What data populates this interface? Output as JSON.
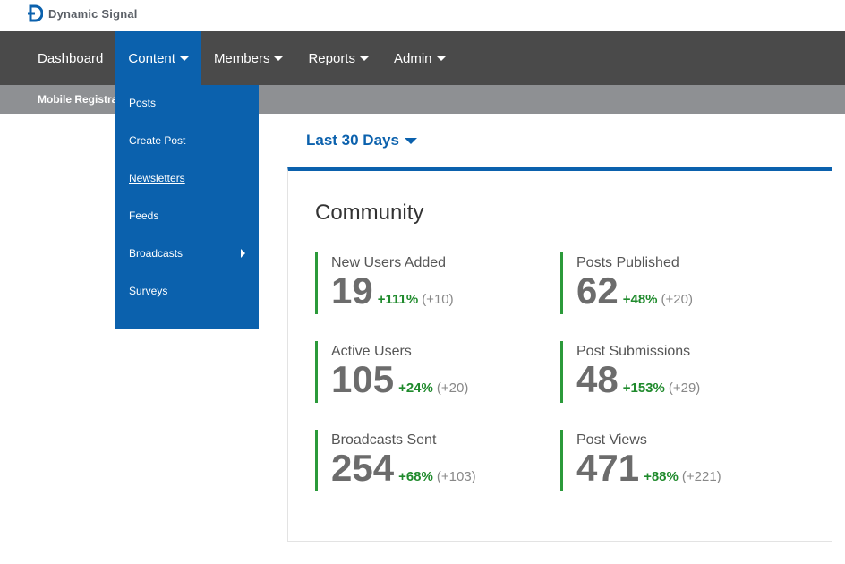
{
  "brand": {
    "name": "Dynamic Signal",
    "colors": {
      "primary": "#0b61ad",
      "nav_bg": "#4a4a4a",
      "subbar_bg": "#8e9093",
      "positive": "#1f8a2c"
    }
  },
  "nav": {
    "items": [
      {
        "label": "Dashboard",
        "has_caret": false
      },
      {
        "label": "Content",
        "has_caret": true,
        "active": true
      },
      {
        "label": "Members",
        "has_caret": true
      },
      {
        "label": "Reports",
        "has_caret": true
      },
      {
        "label": "Admin",
        "has_caret": true
      }
    ]
  },
  "subbar": {
    "label": "Mobile Registra"
  },
  "dropdown": {
    "items": [
      {
        "label": "Posts"
      },
      {
        "label": "Create Post"
      },
      {
        "label": "Newsletters",
        "hovered": true
      },
      {
        "label": "Feeds"
      },
      {
        "label": "Broadcasts",
        "has_submenu": true
      },
      {
        "label": "Surveys"
      }
    ]
  },
  "filter": {
    "label": "Last 30 Days"
  },
  "community": {
    "title": "Community",
    "stats": [
      {
        "label": "New Users Added",
        "value": "19",
        "pct": "+111%",
        "abs": "(+10)"
      },
      {
        "label": "Posts Published",
        "value": "62",
        "pct": "+48%",
        "abs": "(+20)"
      },
      {
        "label": "Active Users",
        "value": "105",
        "pct": "+24%",
        "abs": "(+20)"
      },
      {
        "label": "Post Submissions",
        "value": "48",
        "pct": "+153%",
        "abs": "(+29)"
      },
      {
        "label": "Broadcasts Sent",
        "value": "254",
        "pct": "+68%",
        "abs": "(+103)"
      },
      {
        "label": "Post Views",
        "value": "471",
        "pct": "+88%",
        "abs": "(+221)"
      }
    ]
  }
}
